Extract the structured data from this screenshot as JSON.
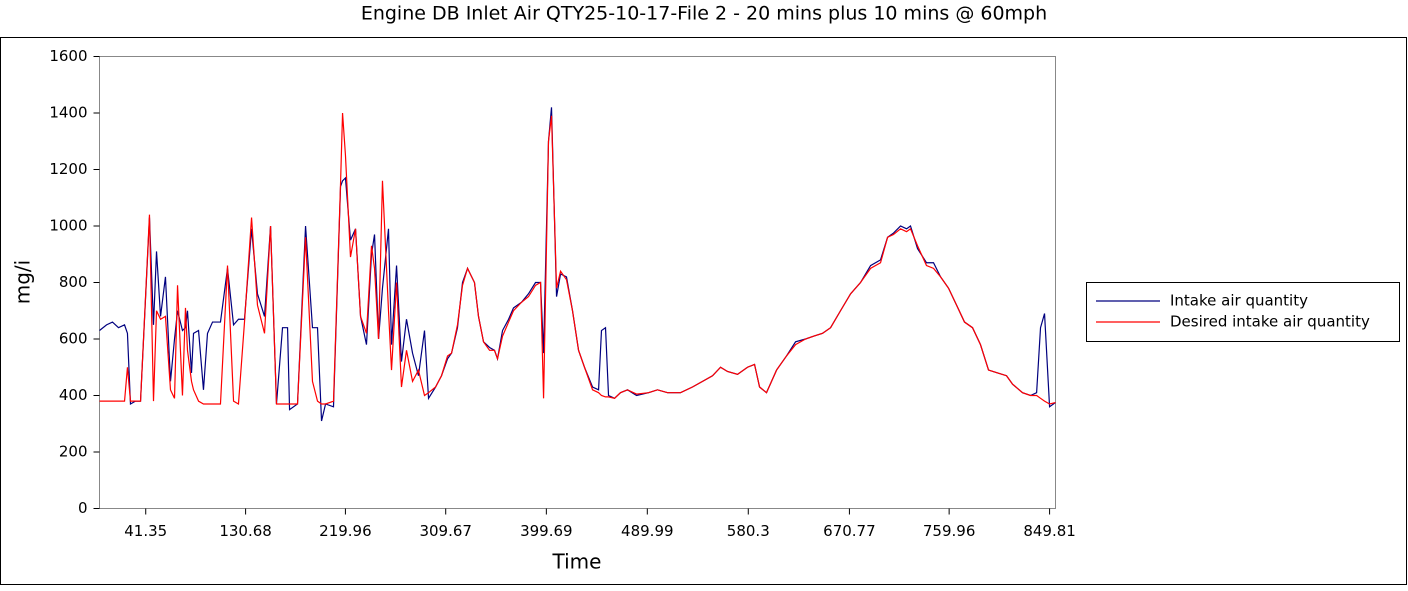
{
  "chart_data": {
    "type": "line",
    "title": "Engine DB  Inlet Air QTY25-10-17-File 2 - 20 mins plus 10 mins @ 60mph",
    "x_label": "Time",
    "y_label": "mg/i",
    "xlim": [
      0,
      855.1
    ],
    "xticks": [
      41.35,
      130.68,
      219.96,
      309.67,
      399.69,
      489.99,
      580.3,
      670.77,
      759.96,
      849.81
    ],
    "ylim": [
      0,
      1600
    ],
    "yticks": [
      0,
      200,
      400,
      600,
      800,
      1000,
      1200,
      1400,
      1600
    ],
    "legend": "right",
    "x": [
      0,
      6.3,
      11.6,
      17.0,
      22.4,
      25.0,
      27.7,
      32.2,
      36.7,
      44.7,
      48.3,
      51.0,
      54.6,
      59.0,
      63.5,
      67.1,
      69.8,
      74.2,
      76.9,
      78.7,
      82.3,
      84.1,
      88.6,
      93.0,
      96.6,
      101.1,
      108.2,
      114.5,
      119.9,
      124.3,
      129.7,
      136.0,
      141.3,
      147.6,
      153.0,
      158.3,
      163.7,
      168.2,
      170.0,
      177.1,
      184.3,
      190.5,
      195.0,
      198.6,
      202.2,
      209.3,
      215.6,
      217.4,
      220.0,
      224.5,
      229.0,
      233.5,
      238.8,
      243.3,
      246.0,
      249.6,
      253.1,
      258.5,
      261.2,
      265.7,
      270.1,
      274.6,
      280.0,
      285.3,
      290.7,
      294.3,
      300.6,
      305.9,
      311.3,
      314.9,
      320.2,
      324.7,
      329.2,
      335.4,
      339.0,
      343.5,
      348.9,
      353.3,
      356.0,
      360.5,
      365.9,
      370.3,
      377.5,
      383.7,
      390.0,
      394.5,
      397.2,
      401.6,
      404.3,
      408.8,
      412.4,
      417.7,
      423.1,
      428.5,
      433.8,
      441.0,
      446.4,
      449.0,
      452.6,
      455.3,
      460.7,
      466.0,
      472.3,
      480.4,
      491.1,
      499.1,
      508.1,
      519.7,
      530.4,
      539.4,
      548.3,
      555.5,
      561.7,
      570.7,
      579.6,
      585.9,
      590.4,
      596.6,
      605.6,
      614.5,
      622.6,
      631.5,
      638.7,
      646.7,
      653.9,
      662.8,
      671.8,
      680.7,
      689.7,
      698.6,
      704.9,
      710.2,
      716.5,
      721.9,
      725.4,
      731.7,
      739.7,
      746.0,
      752.3,
      759.4,
      766.6,
      773.7,
      780.9,
      788.0,
      795.2,
      803.3,
      811.3,
      816.7,
      825.6,
      832.8,
      838.2,
      841.7,
      845.3,
      849.8,
      855.1
    ],
    "series": [
      {
        "name": "Intake air quantity",
        "color": "#00007f",
        "values": [
          630,
          650,
          660,
          640,
          650,
          620,
          370,
          380,
          380,
          1030,
          650,
          910,
          680,
          820,
          450,
          600,
          700,
          630,
          640,
          700,
          480,
          620,
          630,
          420,
          620,
          660,
          660,
          850,
          650,
          670,
          670,
          990,
          760,
          680,
          1000,
          370,
          640,
          640,
          350,
          370,
          1000,
          640,
          640,
          310,
          370,
          360,
          1140,
          1160,
          1170,
          950,
          990,
          680,
          580,
          900,
          970,
          600,
          780,
          990,
          580,
          860,
          520,
          670,
          550,
          470,
          630,
          390,
          430,
          470,
          530,
          550,
          640,
          800,
          850,
          800,
          680,
          590,
          570,
          560,
          530,
          630,
          670,
          710,
          730,
          760,
          800,
          800,
          550,
          1300,
          1420,
          750,
          830,
          820,
          700,
          560,
          500,
          430,
          420,
          630,
          640,
          400,
          390,
          410,
          420,
          400,
          410,
          420,
          410,
          410,
          430,
          450,
          470,
          500,
          485,
          475,
          500,
          510,
          430,
          410,
          490,
          540,
          590,
          600,
          610,
          620,
          640,
          700,
          760,
          800,
          860,
          880,
          960,
          975,
          1000,
          990,
          1000,
          920,
          870,
          870,
          820,
          780,
          720,
          660,
          640,
          580,
          490,
          480,
          470,
          440,
          410,
          400,
          410,
          640,
          690,
          360,
          375
        ]
      },
      {
        "name": "Desired intake air quantity",
        "color": "#ff0000",
        "values": [
          380,
          380,
          380,
          380,
          380,
          500,
          380,
          380,
          380,
          1040,
          380,
          700,
          670,
          680,
          420,
          390,
          790,
          400,
          710,
          560,
          450,
          420,
          380,
          370,
          370,
          370,
          370,
          860,
          380,
          370,
          660,
          1030,
          720,
          620,
          1000,
          370,
          370,
          370,
          370,
          370,
          960,
          450,
          380,
          370,
          370,
          380,
          1150,
          1400,
          1250,
          890,
          990,
          680,
          620,
          930,
          850,
          600,
          1160,
          700,
          490,
          800,
          430,
          560,
          450,
          490,
          400,
          410,
          430,
          470,
          540,
          550,
          650,
          790,
          850,
          800,
          680,
          590,
          560,
          560,
          530,
          610,
          660,
          700,
          730,
          750,
          790,
          800,
          390,
          1300,
          1390,
          780,
          840,
          810,
          700,
          560,
          500,
          420,
          410,
          400,
          395,
          395,
          390,
          410,
          420,
          405,
          410,
          420,
          410,
          410,
          430,
          450,
          470,
          500,
          485,
          475,
          500,
          510,
          430,
          410,
          490,
          540,
          580,
          600,
          610,
          620,
          640,
          700,
          760,
          800,
          850,
          870,
          960,
          970,
          990,
          980,
          990,
          930,
          860,
          850,
          820,
          780,
          720,
          660,
          640,
          580,
          490,
          480,
          470,
          440,
          410,
          400,
          400,
          390,
          380,
          370,
          375
        ]
      }
    ]
  }
}
